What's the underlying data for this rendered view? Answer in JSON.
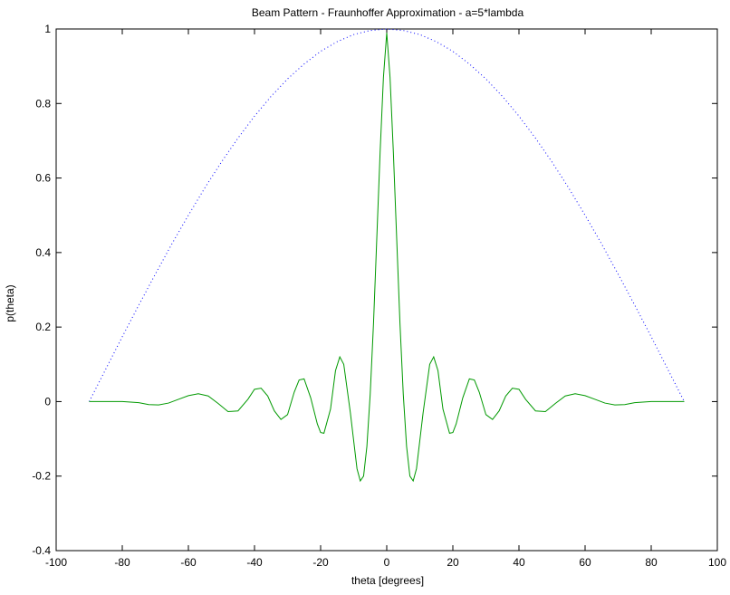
{
  "chart_data": {
    "type": "line",
    "title": "Beam Pattern - Fraunhoffer Approximation - a=5*lambda",
    "xlabel": "theta [degrees]",
    "ylabel": "p(theta)",
    "xlim": [
      -100,
      100
    ],
    "ylim": [
      -0.4,
      1
    ],
    "x_ticks": [
      -100,
      -80,
      -60,
      -40,
      -20,
      0,
      20,
      40,
      60,
      80,
      100
    ],
    "y_ticks": [
      -0.4,
      -0.2,
      0,
      0.2,
      0.4,
      0.6,
      0.8,
      1
    ],
    "x_tick_labels": [
      "-100",
      "-80",
      "-60",
      "-40",
      "-20",
      "0",
      "20",
      "40",
      "60",
      "80",
      "100"
    ],
    "y_tick_labels": [
      "-0.4",
      "-0.2",
      "0",
      "0.2",
      "0.4",
      "0.6",
      "0.8",
      "1"
    ],
    "grid": false,
    "series": [
      {
        "color": "#0000ff",
        "style": "dotted",
        "x": [
          -90,
          -85,
          -80,
          -75,
          -70,
          -65,
          -60,
          -55,
          -50,
          -45,
          -40,
          -35,
          -30,
          -25,
          -20,
          -15,
          -10,
          -5,
          0,
          5,
          10,
          15,
          20,
          25,
          30,
          35,
          40,
          45,
          50,
          55,
          60,
          65,
          70,
          75,
          80,
          85,
          90
        ],
        "values": [
          0,
          0.087,
          0.174,
          0.259,
          0.342,
          0.423,
          0.5,
          0.574,
          0.643,
          0.707,
          0.766,
          0.819,
          0.866,
          0.906,
          0.94,
          0.966,
          0.985,
          0.996,
          1,
          0.996,
          0.985,
          0.966,
          0.94,
          0.906,
          0.866,
          0.819,
          0.766,
          0.707,
          0.643,
          0.574,
          0.5,
          0.423,
          0.342,
          0.259,
          0.174,
          0.087,
          0
        ]
      },
      {
        "color": "#009900",
        "style": "solid",
        "x": [
          -90,
          -85,
          -80,
          -75,
          -72,
          -69,
          -66,
          -63,
          -60,
          -57,
          -54,
          -51,
          -48,
          -45,
          -42,
          -40,
          -38,
          -36,
          -34,
          -32,
          -30,
          -28,
          -26.5,
          -25,
          -23,
          -21,
          -20,
          -19,
          -17,
          -15.5,
          -14.2,
          -13,
          -11,
          -10,
          -9,
          -8,
          -7,
          -6,
          -5,
          -4,
          -3,
          -2,
          -1,
          0,
          1,
          2,
          3,
          4,
          5,
          6,
          7,
          8,
          9,
          10,
          11,
          13,
          14.2,
          15.5,
          17,
          19,
          20,
          21,
          23,
          25,
          26.5,
          28,
          30,
          32,
          34,
          36,
          38,
          40,
          42,
          45,
          48,
          51,
          54,
          57,
          60,
          63,
          66,
          69,
          72,
          75,
          80,
          85,
          90
        ],
        "values": [
          0,
          0,
          0,
          -0.003,
          -0.008,
          -0.009,
          -0.004,
          0.006,
          0.016,
          0.021,
          0.015,
          -0.005,
          -0.027,
          -0.025,
          0.006,
          0.033,
          0.036,
          0.015,
          -0.025,
          -0.048,
          -0.035,
          0.025,
          0.058,
          0.061,
          0.01,
          -0.06,
          -0.083,
          -0.085,
          -0.02,
          0.083,
          0.12,
          0.1,
          -0.03,
          -0.105,
          -0.18,
          -0.213,
          -0.2,
          -0.12,
          0.02,
          0.21,
          0.44,
          0.67,
          0.87,
          0.99,
          0.87,
          0.67,
          0.44,
          0.21,
          0.02,
          -0.12,
          -0.2,
          -0.213,
          -0.18,
          -0.105,
          -0.03,
          0.1,
          0.12,
          0.083,
          -0.02,
          -0.085,
          -0.083,
          -0.06,
          0.01,
          0.061,
          0.058,
          0.025,
          -0.035,
          -0.048,
          -0.025,
          0.015,
          0.036,
          0.033,
          0.006,
          -0.025,
          -0.027,
          -0.005,
          0.015,
          0.021,
          0.016,
          0.006,
          -0.004,
          -0.009,
          -0.008,
          -0.003,
          0,
          0,
          0
        ]
      }
    ]
  }
}
